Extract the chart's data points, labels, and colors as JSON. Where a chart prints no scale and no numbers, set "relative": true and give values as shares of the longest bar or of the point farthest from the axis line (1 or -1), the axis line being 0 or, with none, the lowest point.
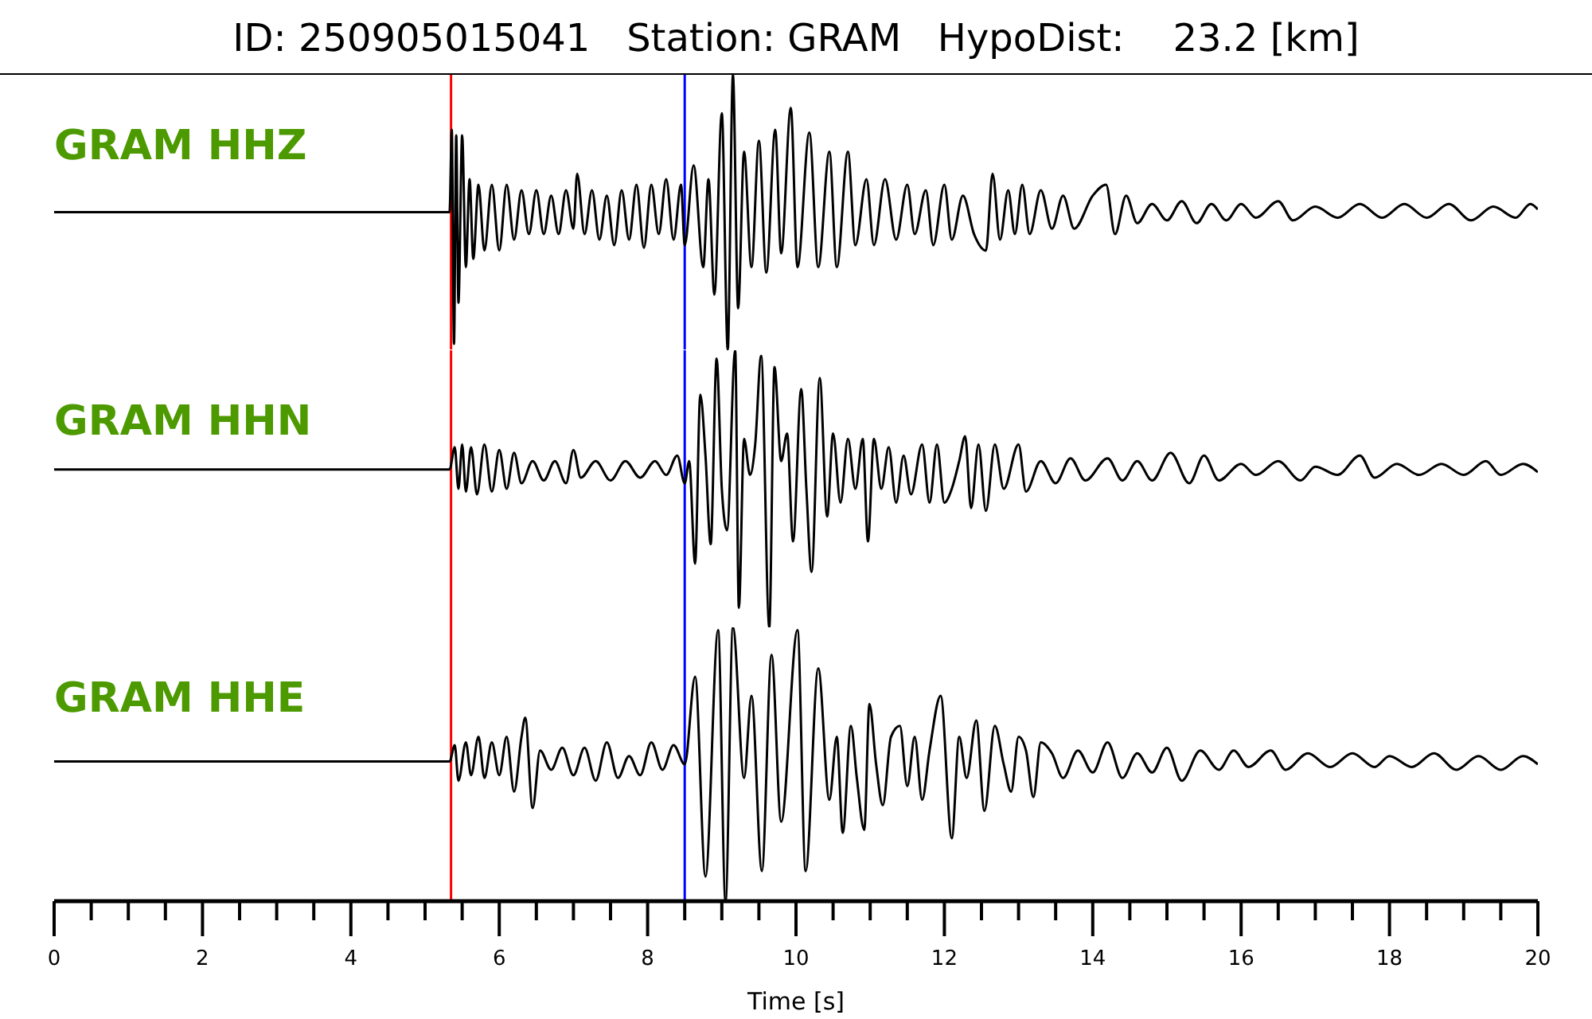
{
  "chart_data": [
    {
      "type": "line",
      "title": "ID: 250905015041   Station: GRAM   HypoDist:    23.2 [km]",
      "relative": true,
      "xlim": [
        0,
        20
      ],
      "tick_labels": false,
      "marker": "none",
      "line_style": "solid",
      "ref_lines": [
        {
          "axis": "x",
          "value": 5.35,
          "color": "#ff0000"
        },
        {
          "axis": "x",
          "value": 8.5,
          "color": "#0000ff"
        }
      ],
      "series": [
        {
          "name": "GRAM HHZ",
          "color": "#000000",
          "x": [
            0,
            5.33,
            5.36,
            5.39,
            5.42,
            5.45,
            5.5,
            5.55,
            5.6,
            5.65,
            5.72,
            5.8,
            5.9,
            6.0,
            6.1,
            6.2,
            6.3,
            6.4,
            6.5,
            6.6,
            6.7,
            6.8,
            6.9,
            7.0,
            7.05,
            7.15,
            7.25,
            7.35,
            7.45,
            7.55,
            7.65,
            7.75,
            7.85,
            7.95,
            8.05,
            8.15,
            8.25,
            8.35,
            8.45,
            8.5,
            8.62,
            8.75,
            8.82,
            8.9,
            9.0,
            9.08,
            9.15,
            9.22,
            9.3,
            9.4,
            9.5,
            9.6,
            9.72,
            9.8,
            9.93,
            10.02,
            10.18,
            10.3,
            10.45,
            10.55,
            10.7,
            10.8,
            10.95,
            11.05,
            11.2,
            11.35,
            11.5,
            11.6,
            11.75,
            11.85,
            12.0,
            12.1,
            12.25,
            12.4,
            12.56,
            12.65,
            12.75,
            12.86,
            12.95,
            13.05,
            13.15,
            13.3,
            13.45,
            13.6,
            13.75,
            14.0,
            14.18,
            14.3,
            14.45,
            14.6,
            14.8,
            15.0,
            15.2,
            15.4,
            15.6,
            15.8,
            16.0,
            16.2,
            16.5,
            16.7,
            17.0,
            17.3,
            17.6,
            17.9,
            18.2,
            18.5,
            18.8,
            19.1,
            19.4,
            19.7,
            19.9,
            20.0
          ],
          "values": [
            0.5,
            0.5,
            0.8,
            0.02,
            0.78,
            0.17,
            0.78,
            0.3,
            0.62,
            0.33,
            0.6,
            0.36,
            0.6,
            0.36,
            0.6,
            0.4,
            0.58,
            0.42,
            0.58,
            0.42,
            0.56,
            0.42,
            0.58,
            0.44,
            0.64,
            0.42,
            0.58,
            0.4,
            0.56,
            0.38,
            0.58,
            0.4,
            0.6,
            0.37,
            0.6,
            0.42,
            0.62,
            0.4,
            0.6,
            0.38,
            0.67,
            0.3,
            0.62,
            0.2,
            0.86,
            0.0,
            1.0,
            0.15,
            0.72,
            0.3,
            0.76,
            0.28,
            0.8,
            0.35,
            0.88,
            0.3,
            0.79,
            0.3,
            0.72,
            0.3,
            0.72,
            0.38,
            0.62,
            0.38,
            0.62,
            0.4,
            0.6,
            0.42,
            0.58,
            0.38,
            0.6,
            0.4,
            0.56,
            0.42,
            0.36,
            0.64,
            0.4,
            0.58,
            0.42,
            0.6,
            0.42,
            0.58,
            0.44,
            0.56,
            0.44,
            0.56,
            0.6,
            0.42,
            0.56,
            0.46,
            0.53,
            0.47,
            0.54,
            0.46,
            0.53,
            0.47,
            0.53,
            0.48,
            0.54,
            0.47,
            0.52,
            0.48,
            0.53,
            0.48,
            0.53,
            0.48,
            0.53,
            0.47,
            0.52,
            0.48,
            0.53,
            0.51
          ]
        }
      ]
    },
    {
      "type": "line",
      "relative": true,
      "xlim": [
        0,
        20
      ],
      "tick_labels": false,
      "marker": "none",
      "line_style": "solid",
      "ref_lines": [
        {
          "axis": "x",
          "value": 5.35,
          "color": "#ff0000"
        },
        {
          "axis": "x",
          "value": 8.5,
          "color": "#0000ff"
        }
      ],
      "series": [
        {
          "name": "GRAM HHN",
          "color": "#000000",
          "x": [
            0,
            5.33,
            5.4,
            5.45,
            5.5,
            5.55,
            5.62,
            5.7,
            5.8,
            5.9,
            6.0,
            6.1,
            6.2,
            6.3,
            6.45,
            6.6,
            6.75,
            6.9,
            7.0,
            7.1,
            7.3,
            7.5,
            7.7,
            7.9,
            8.1,
            8.25,
            8.4,
            8.5,
            8.56,
            8.64,
            8.71,
            8.78,
            8.85,
            8.93,
            9.0,
            9.07,
            9.18,
            9.23,
            9.3,
            9.38,
            9.45,
            9.53,
            9.64,
            9.71,
            9.8,
            9.88,
            9.96,
            10.07,
            10.14,
            10.21,
            10.32,
            10.42,
            10.5,
            10.6,
            10.7,
            10.8,
            10.9,
            10.97,
            11.05,
            11.15,
            11.25,
            11.35,
            11.45,
            11.55,
            11.7,
            11.8,
            11.9,
            12.0,
            12.1,
            12.2,
            12.28,
            12.36,
            12.46,
            12.56,
            12.68,
            12.8,
            13.0,
            13.1,
            13.3,
            13.5,
            13.7,
            13.9,
            14.2,
            14.4,
            14.6,
            14.8,
            15.05,
            15.3,
            15.5,
            15.7,
            16.0,
            16.2,
            16.5,
            16.8,
            17.0,
            17.3,
            17.6,
            17.8,
            18.1,
            18.4,
            18.7,
            19.0,
            19.3,
            19.5,
            19.8,
            20.0
          ],
          "values": [
            0.57,
            0.57,
            0.65,
            0.5,
            0.66,
            0.49,
            0.65,
            0.48,
            0.66,
            0.49,
            0.64,
            0.5,
            0.63,
            0.52,
            0.6,
            0.53,
            0.6,
            0.52,
            0.64,
            0.54,
            0.6,
            0.53,
            0.6,
            0.54,
            0.6,
            0.55,
            0.62,
            0.52,
            0.6,
            0.23,
            0.84,
            0.62,
            0.3,
            0.97,
            0.5,
            0.35,
            1.0,
            0.07,
            0.68,
            0.55,
            0.66,
            0.98,
            0.0,
            0.94,
            0.6,
            0.7,
            0.31,
            0.86,
            0.5,
            0.2,
            0.9,
            0.4,
            0.7,
            0.45,
            0.68,
            0.5,
            0.68,
            0.31,
            0.68,
            0.5,
            0.65,
            0.45,
            0.62,
            0.48,
            0.66,
            0.45,
            0.66,
            0.45,
            0.5,
            0.6,
            0.69,
            0.43,
            0.66,
            0.42,
            0.66,
            0.5,
            0.66,
            0.49,
            0.6,
            0.52,
            0.61,
            0.53,
            0.61,
            0.53,
            0.6,
            0.53,
            0.63,
            0.52,
            0.62,
            0.53,
            0.59,
            0.55,
            0.6,
            0.53,
            0.58,
            0.55,
            0.62,
            0.54,
            0.59,
            0.55,
            0.59,
            0.55,
            0.6,
            0.55,
            0.59,
            0.56
          ]
        }
      ]
    },
    {
      "type": "line",
      "relative": true,
      "xlim": [
        0,
        20
      ],
      "tick_labels": "x",
      "marker": "none",
      "line_style": "solid",
      "xlabel": "Time [s]",
      "xticks": [
        0,
        {
          "value": 0.5,
          "label": null
        },
        {
          "value": 1,
          "label": null
        },
        {
          "value": 1.5,
          "label": null
        },
        2,
        {
          "value": 2.5,
          "label": null
        },
        {
          "value": 3,
          "label": null
        },
        {
          "value": 3.5,
          "label": null
        },
        4,
        {
          "value": 4.5,
          "label": null
        },
        {
          "value": 5,
          "label": null
        },
        {
          "value": 5.5,
          "label": null
        },
        6,
        {
          "value": 6.5,
          "label": null
        },
        {
          "value": 7,
          "label": null
        },
        {
          "value": 7.5,
          "label": null
        },
        8,
        {
          "value": 8.5,
          "label": null
        },
        {
          "value": 9,
          "label": null
        },
        {
          "value": 9.5,
          "label": null
        },
        10,
        {
          "value": 10.5,
          "label": null
        },
        {
          "value": 11,
          "label": null
        },
        {
          "value": 11.5,
          "label": null
        },
        12,
        {
          "value": 12.5,
          "label": null
        },
        {
          "value": 13,
          "label": null
        },
        {
          "value": 13.5,
          "label": null
        },
        14,
        {
          "value": 14.5,
          "label": null
        },
        {
          "value": 15,
          "label": null
        },
        {
          "value": 15.5,
          "label": null
        },
        16,
        {
          "value": 16.5,
          "label": null
        },
        {
          "value": 17,
          "label": null
        },
        {
          "value": 17.5,
          "label": null
        },
        18,
        {
          "value": 18.5,
          "label": null
        },
        {
          "value": 19,
          "label": null
        },
        {
          "value": 19.5,
          "label": null
        },
        20
      ],
      "ref_lines": [
        {
          "axis": "x",
          "value": 5.35,
          "color": "#ff0000"
        },
        {
          "axis": "x",
          "value": 8.5,
          "color": "#0000ff"
        }
      ],
      "series": [
        {
          "name": "GRAM HHE",
          "color": "#000000",
          "x": [
            0,
            5.33,
            5.4,
            5.45,
            5.55,
            5.62,
            5.72,
            5.8,
            5.9,
            6.0,
            6.1,
            6.2,
            6.3,
            6.35,
            6.45,
            6.55,
            6.7,
            6.85,
            7.0,
            7.15,
            7.3,
            7.45,
            7.6,
            7.75,
            7.9,
            8.05,
            8.2,
            8.35,
            8.5,
            8.64,
            8.78,
            8.95,
            9.05,
            9.15,
            9.3,
            9.4,
            9.54,
            9.67,
            9.8,
            10.02,
            10.13,
            10.3,
            10.45,
            10.55,
            10.63,
            10.74,
            10.82,
            10.92,
            10.99,
            11.08,
            11.17,
            11.28,
            11.4,
            11.5,
            11.6,
            11.7,
            11.8,
            11.95,
            12.1,
            12.2,
            12.3,
            12.43,
            12.54,
            12.68,
            12.8,
            12.9,
            13.0,
            13.1,
            13.2,
            13.3,
            13.45,
            13.6,
            13.8,
            14.0,
            14.2,
            14.4,
            14.6,
            14.8,
            15.0,
            15.2,
            15.45,
            15.7,
            15.9,
            16.1,
            16.4,
            16.6,
            16.9,
            17.2,
            17.5,
            17.8,
            18.0,
            18.3,
            18.6,
            18.9,
            19.2,
            19.5,
            19.8,
            20.0
          ],
          "values": [
            0.51,
            0.51,
            0.57,
            0.44,
            0.58,
            0.46,
            0.6,
            0.45,
            0.58,
            0.46,
            0.6,
            0.4,
            0.6,
            0.67,
            0.34,
            0.55,
            0.48,
            0.56,
            0.46,
            0.56,
            0.44,
            0.58,
            0.45,
            0.53,
            0.46,
            0.58,
            0.48,
            0.57,
            0.5,
            0.82,
            0.09,
            0.99,
            0.0,
            1.0,
            0.45,
            0.75,
            0.11,
            0.9,
            0.29,
            0.99,
            0.11,
            0.85,
            0.37,
            0.6,
            0.25,
            0.64,
            0.45,
            0.26,
            0.72,
            0.5,
            0.35,
            0.6,
            0.64,
            0.42,
            0.6,
            0.37,
            0.55,
            0.75,
            0.23,
            0.6,
            0.45,
            0.66,
            0.33,
            0.64,
            0.5,
            0.4,
            0.6,
            0.55,
            0.38,
            0.58,
            0.54,
            0.45,
            0.55,
            0.47,
            0.58,
            0.45,
            0.54,
            0.47,
            0.56,
            0.44,
            0.55,
            0.48,
            0.55,
            0.49,
            0.55,
            0.48,
            0.54,
            0.49,
            0.54,
            0.49,
            0.53,
            0.49,
            0.54,
            0.48,
            0.53,
            0.48,
            0.53,
            0.5
          ]
        }
      ]
    }
  ]
}
